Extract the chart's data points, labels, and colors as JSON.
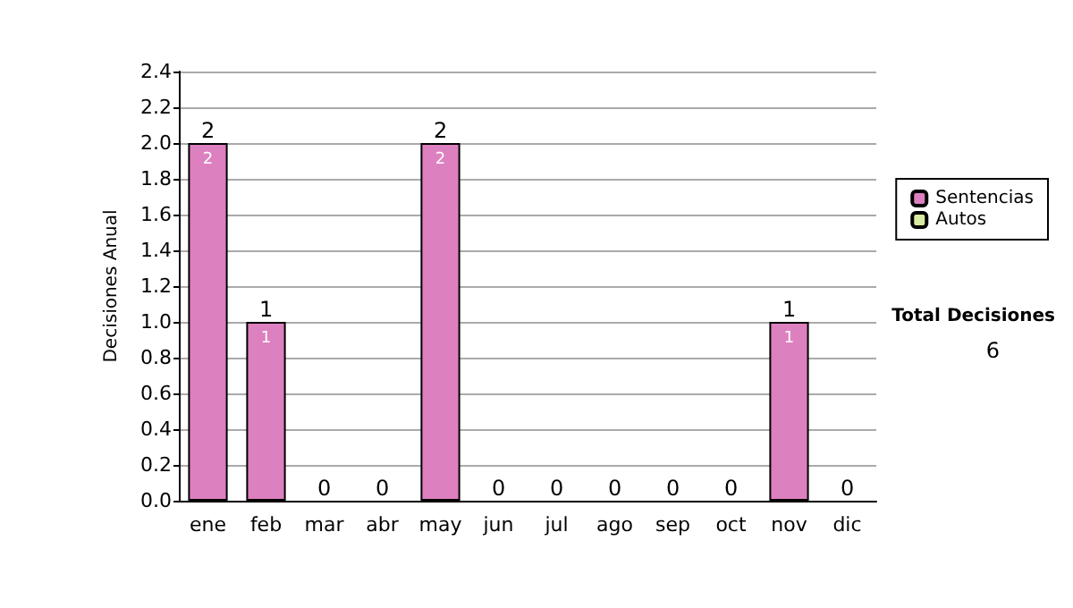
{
  "chart_data": {
    "type": "bar",
    "stacked": true,
    "ylabel": "Decisiones Anual",
    "categories": [
      "ene",
      "feb",
      "mar",
      "abr",
      "may",
      "jun",
      "jul",
      "ago",
      "sep",
      "oct",
      "nov",
      "dic"
    ],
    "series": [
      {
        "name": "Sentencias",
        "color": "#dd80c0",
        "values": [
          2,
          1,
          0,
          0,
          2,
          0,
          0,
          0,
          0,
          0,
          1,
          0
        ],
        "value_labels": [
          "2",
          "1",
          null,
          null,
          "2",
          null,
          null,
          null,
          null,
          null,
          "1",
          null
        ]
      },
      {
        "name": "Autos",
        "color": "#d8eba0",
        "values": [
          0,
          0,
          0,
          0,
          0,
          0,
          0,
          0,
          0,
          0,
          0,
          0
        ]
      }
    ],
    "totals": [
      "2",
      "1",
      "0",
      "0",
      "2",
      "0",
      "0",
      "0",
      "0",
      "0",
      "1",
      "0"
    ],
    "ylim": [
      0,
      2.4
    ],
    "yticks": [
      {
        "value": 0,
        "label": "0.0"
      },
      0.2,
      0.4,
      0.6,
      0.8,
      {
        "value": 1,
        "label": "1.0"
      },
      1.2,
      1.4,
      1.6,
      1.8,
      {
        "value": 2,
        "label": "2.0"
      },
      2.2,
      2.4
    ],
    "grid": "y",
    "legend": "right",
    "annotations": [
      "Total Decisiones",
      "6"
    ]
  }
}
